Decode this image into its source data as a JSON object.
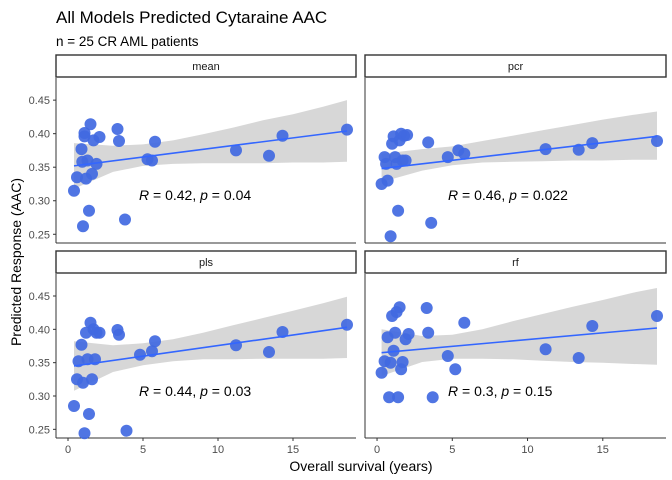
{
  "figure": {
    "title": "All Models Predicted Cytaraine AAC",
    "subtitle": "n = 25 CR AML patients",
    "xlabel": "Overall survival (years)",
    "ylabel": "Predicted Response (AAC)",
    "point_color": "#4169E1",
    "line_color": "#3366FF",
    "band_color": "#D3D3D3"
  },
  "chart_data": [
    {
      "type": "scatter",
      "panel": "mean",
      "xlim": [
        -0.8,
        19.2
      ],
      "ylim": [
        0.237,
        0.483
      ],
      "x_ticks": [
        0,
        5,
        10,
        15
      ],
      "y_ticks": [
        0.25,
        0.3,
        0.35,
        0.4,
        0.45
      ],
      "y_tick_labels": [
        "0.25",
        "0.30",
        "0.35",
        "0.40",
        "0.45"
      ],
      "x": [
        0.4,
        0.6,
        0.9,
        1.0,
        1.1,
        1.1,
        1.2,
        1.3,
        1.4,
        1.5,
        1.6,
        1.7,
        1.9,
        2.1,
        3.3,
        3.4,
        3.8,
        5.3,
        5.6,
        5.8,
        11.2,
        13.4,
        14.3,
        18.6,
        0.95
      ],
      "y": [
        0.315,
        0.335,
        0.377,
        0.262,
        0.396,
        0.401,
        0.333,
        0.36,
        0.285,
        0.414,
        0.34,
        0.39,
        0.355,
        0.395,
        0.407,
        0.389,
        0.272,
        0.362,
        0.36,
        0.388,
        0.375,
        0.367,
        0.397,
        0.406,
        0.358
      ],
      "fit": {
        "x0": 0.4,
        "y0": 0.352,
        "x1": 18.6,
        "y1": 0.404
      },
      "band": {
        "x": [
          0.4,
          3,
          5,
          7,
          9,
          11,
          13,
          15,
          17,
          18.6
        ],
        "lower": [
          0.318,
          0.343,
          0.352,
          0.355,
          0.356,
          0.356,
          0.356,
          0.357,
          0.357,
          0.358
        ],
        "upper": [
          0.386,
          0.382,
          0.384,
          0.39,
          0.399,
          0.409,
          0.42,
          0.429,
          0.44,
          0.45
        ]
      },
      "annotation": {
        "r": "0.42",
        "p": "0.04"
      }
    },
    {
      "type": "scatter",
      "panel": "pcr",
      "xlim": [
        -0.8,
        19.2
      ],
      "ylim": [
        0.237,
        0.483
      ],
      "x_ticks": [
        0,
        5,
        10,
        15
      ],
      "y_ticks": [
        0.25,
        0.3,
        0.35,
        0.4,
        0.45
      ],
      "x": [
        0.3,
        0.5,
        0.7,
        0.9,
        1.0,
        1.1,
        1.2,
        1.3,
        1.4,
        1.5,
        1.6,
        1.7,
        1.8,
        1.9,
        2.0,
        3.4,
        3.6,
        4.7,
        5.4,
        5.8,
        11.2,
        13.4,
        14.3,
        18.6,
        0.6
      ],
      "y": [
        0.325,
        0.365,
        0.33,
        0.247,
        0.385,
        0.396,
        0.365,
        0.355,
        0.285,
        0.39,
        0.4,
        0.36,
        0.397,
        0.36,
        0.398,
        0.387,
        0.267,
        0.365,
        0.375,
        0.37,
        0.377,
        0.376,
        0.386,
        0.389,
        0.355
      ],
      "fit": {
        "x0": 0.3,
        "y0": 0.348,
        "x1": 18.6,
        "y1": 0.396
      },
      "band": {
        "x": [
          0.3,
          3,
          5,
          7,
          9,
          11,
          13,
          15,
          17,
          18.6
        ],
        "lower": [
          0.328,
          0.345,
          0.353,
          0.357,
          0.358,
          0.359,
          0.36,
          0.36,
          0.361,
          0.361
        ],
        "upper": [
          0.37,
          0.377,
          0.381,
          0.389,
          0.397,
          0.405,
          0.413,
          0.421,
          0.428,
          0.433
        ]
      },
      "annotation": {
        "r": "0.46",
        "p": "0.022"
      }
    },
    {
      "type": "scatter",
      "panel": "pls",
      "xlim": [
        -0.8,
        19.2
      ],
      "ylim": [
        0.237,
        0.483
      ],
      "x_ticks": [
        0,
        5,
        10,
        15
      ],
      "y_ticks": [
        0.25,
        0.3,
        0.35,
        0.4,
        0.45
      ],
      "x": [
        0.4,
        0.6,
        0.9,
        1.0,
        1.1,
        1.2,
        1.3,
        1.4,
        1.5,
        1.6,
        1.7,
        1.8,
        1.9,
        2.1,
        3.3,
        3.4,
        3.9,
        4.8,
        5.6,
        5.8,
        11.2,
        13.4,
        14.3,
        18.6,
        0.7
      ],
      "y": [
        0.285,
        0.325,
        0.377,
        0.32,
        0.244,
        0.395,
        0.355,
        0.273,
        0.41,
        0.325,
        0.4,
        0.355,
        0.395,
        0.395,
        0.399,
        0.392,
        0.248,
        0.362,
        0.367,
        0.382,
        0.376,
        0.366,
        0.396,
        0.407,
        0.352
      ],
      "fit": {
        "x0": 0.4,
        "y0": 0.345,
        "x1": 18.6,
        "y1": 0.403
      },
      "band": {
        "x": [
          0.4,
          3,
          5,
          7,
          9,
          11,
          13,
          15,
          17,
          18.6
        ],
        "lower": [
          0.308,
          0.336,
          0.346,
          0.352,
          0.355,
          0.355,
          0.356,
          0.356,
          0.356,
          0.357
        ],
        "upper": [
          0.382,
          0.376,
          0.379,
          0.385,
          0.395,
          0.406,
          0.417,
          0.428,
          0.439,
          0.449
        ]
      },
      "annotation": {
        "r": "0.44",
        "p": "0.03"
      }
    },
    {
      "type": "scatter",
      "panel": "rf",
      "xlim": [
        -0.8,
        19.2
      ],
      "ylim": [
        0.237,
        0.483
      ],
      "x_ticks": [
        0,
        5,
        10,
        15
      ],
      "y_ticks": [
        0.25,
        0.3,
        0.35,
        0.4,
        0.45
      ],
      "x": [
        0.3,
        0.5,
        0.7,
        0.8,
        0.9,
        1.0,
        1.1,
        1.2,
        1.3,
        1.4,
        1.5,
        1.6,
        1.7,
        1.9,
        2.1,
        3.3,
        3.4,
        3.7,
        4.7,
        5.2,
        5.8,
        11.2,
        13.4,
        14.3,
        18.6
      ],
      "y": [
        0.335,
        0.352,
        0.388,
        0.298,
        0.35,
        0.42,
        0.368,
        0.395,
        0.426,
        0.298,
        0.433,
        0.34,
        0.351,
        0.385,
        0.393,
        0.432,
        0.395,
        0.298,
        0.36,
        0.34,
        0.41,
        0.37,
        0.357,
        0.405,
        0.42
      ],
      "fit": {
        "x0": 0.3,
        "y0": 0.365,
        "x1": 18.6,
        "y1": 0.402
      },
      "band": {
        "x": [
          0.3,
          3,
          5,
          7,
          9,
          11,
          13,
          15,
          17,
          18.6
        ],
        "lower": [
          0.33,
          0.351,
          0.356,
          0.356,
          0.355,
          0.353,
          0.351,
          0.35,
          0.348,
          0.347
        ],
        "upper": [
          0.4,
          0.39,
          0.392,
          0.4,
          0.412,
          0.423,
          0.434,
          0.444,
          0.455,
          0.462
        ]
      },
      "annotation": {
        "r": "0.3",
        "p": "0.15"
      }
    }
  ]
}
